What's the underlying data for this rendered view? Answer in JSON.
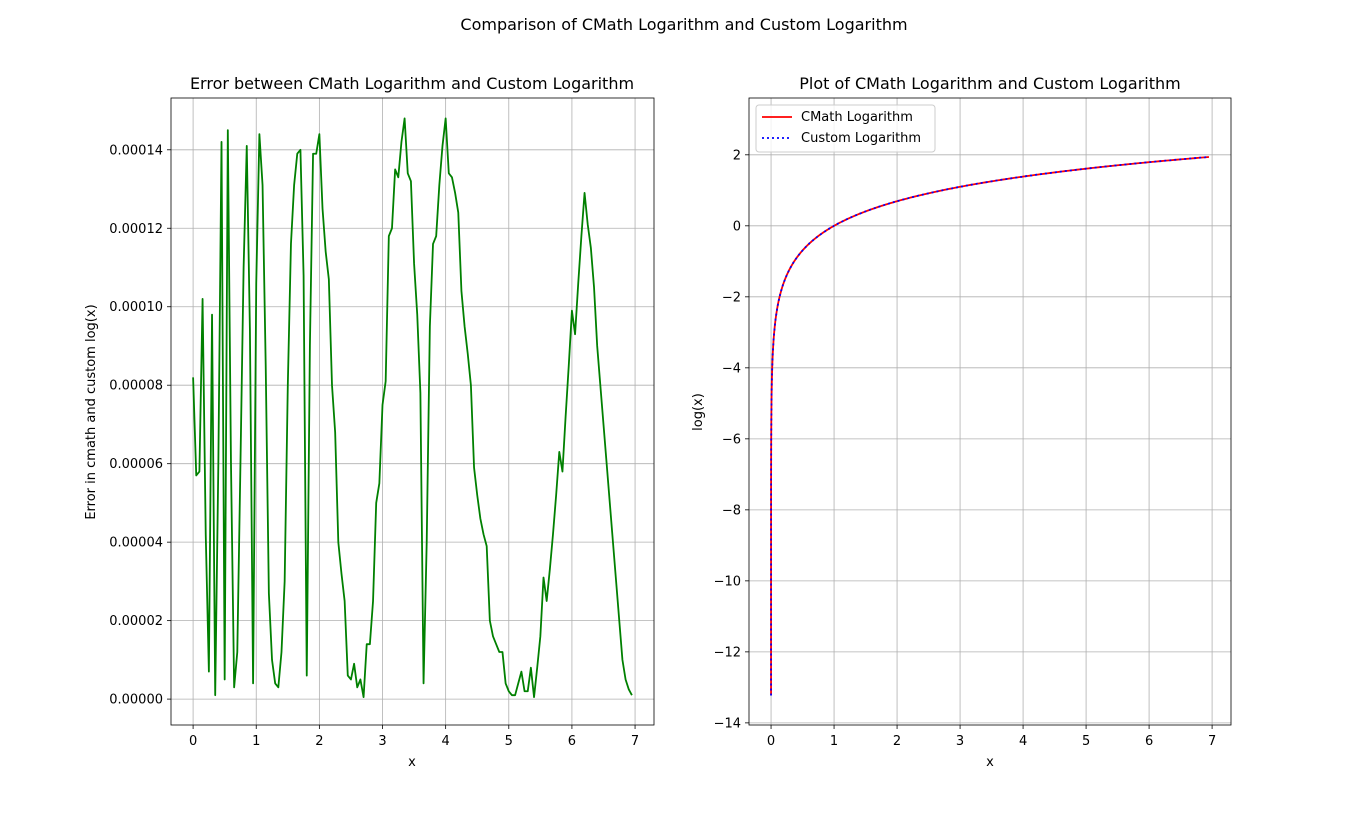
{
  "figure_title": "Comparison of CMath Logarithm and Custom Logarithm",
  "chart_data": [
    {
      "type": "line",
      "title": "Error between CMath Logarithm and Custom Logarithm",
      "xlabel": "x",
      "ylabel": "Error in cmath and custom log(x)",
      "xlim": [
        -0.35,
        7.3
      ],
      "ylim": [
        -6.6e-06,
        0.0001532
      ],
      "xticks": [
        0,
        1,
        2,
        3,
        4,
        5,
        6,
        7
      ],
      "xtick_labels": [
        "0",
        "1",
        "2",
        "3",
        "4",
        "5",
        "6",
        "7"
      ],
      "yticks": [
        0,
        2e-05,
        4e-05,
        6e-05,
        8e-05,
        0.0001,
        0.00012,
        0.00014
      ],
      "ytick_labels": [
        "0.00000",
        "0.00002",
        "0.00004",
        "0.00006",
        "0.00008",
        "0.00010",
        "0.00012",
        "0.00014"
      ],
      "grid": true,
      "series": [
        {
          "color": "#008000",
          "style": "solid",
          "x": [
            0,
            0.05,
            0.1,
            0.15,
            0.2,
            0.25,
            0.3,
            0.35,
            0.4,
            0.45,
            0.5,
            0.55,
            0.6,
            0.65,
            0.7,
            0.75,
            0.8,
            0.85,
            0.9,
            0.95,
            1.0,
            1.05,
            1.1,
            1.15,
            1.2,
            1.25,
            1.3,
            1.35,
            1.4,
            1.45,
            1.5,
            1.55,
            1.6,
            1.65,
            1.7,
            1.75,
            1.8,
            1.85,
            1.9,
            1.95,
            2.0,
            2.05,
            2.1,
            2.15,
            2.2,
            2.25,
            2.3,
            2.35,
            2.4,
            2.45,
            2.5,
            2.55,
            2.6,
            2.65,
            2.7,
            2.75,
            2.8,
            2.85,
            2.9,
            2.95,
            3.0,
            3.05,
            3.1,
            3.15,
            3.2,
            3.25,
            3.3,
            3.35,
            3.4,
            3.45,
            3.5,
            3.55,
            3.6,
            3.65,
            3.7,
            3.75,
            3.8,
            3.85,
            3.9,
            3.95,
            4.0,
            4.05,
            4.1,
            4.15,
            4.2,
            4.25,
            4.3,
            4.35,
            4.4,
            4.45,
            4.5,
            4.55,
            4.6,
            4.65,
            4.7,
            4.75,
            4.8,
            4.85,
            4.9,
            4.95,
            5.0,
            5.05,
            5.1,
            5.15,
            5.2,
            5.25,
            5.3,
            5.35,
            5.4,
            5.45,
            5.5,
            5.55,
            5.6,
            5.65,
            5.7,
            5.75,
            5.8,
            5.85,
            5.9,
            5.95,
            6.0,
            6.05,
            6.1,
            6.15,
            6.2,
            6.25,
            6.3,
            6.35,
            6.4,
            6.45,
            6.5,
            6.55,
            6.6,
            6.65,
            6.7,
            6.75,
            6.8,
            6.85,
            6.9,
            6.95
          ],
          "y": [
            8.2e-05,
            5.7e-05,
            5.8e-05,
            0.000102,
            4.2e-05,
            7e-06,
            9.8e-05,
            1e-06,
            6e-05,
            0.000142,
            5e-06,
            0.000145,
            6e-05,
            3e-06,
            1.2e-05,
            6e-05,
            0.00011,
            0.000141,
            9.4e-05,
            4e-06,
            0.000106,
            0.000144,
            0.000131,
            8.5e-05,
            2.7e-05,
            1e-05,
            4e-06,
            3e-06,
            1.2e-05,
            3e-05,
            8e-05,
            0.000116,
            0.000131,
            0.000139,
            0.00014,
            0.000108,
            6e-06,
            9e-05,
            0.000139,
            0.000139,
            0.000144,
            0.000125,
            0.000114,
            0.000107,
            8e-05,
            6.8e-05,
            4e-05,
            3.2e-05,
            2.5e-05,
            6e-06,
            5e-06,
            9e-06,
            3e-06,
            5e-06,
            5e-07,
            1.4e-05,
            1.4e-05,
            2.5e-05,
            5e-05,
            5.5e-05,
            7.5e-05,
            8.1e-05,
            0.000118,
            0.00012,
            0.000135,
            0.000133,
            0.000142,
            0.000148,
            0.000134,
            0.000132,
            0.000111,
            9.8e-05,
            7.8e-05,
            4e-06,
            4e-05,
            9.5e-05,
            0.000116,
            0.000118,
            0.000131,
            0.000141,
            0.000148,
            0.000134,
            0.000133,
            0.000129,
            0.000124,
            0.000104,
            9.5e-05,
            8.8e-05,
            8e-05,
            5.9e-05,
            5.2e-05,
            4.6e-05,
            4.2e-05,
            3.9e-05,
            2e-05,
            1.6e-05,
            1.4e-05,
            1.2e-05,
            1.2e-05,
            4e-06,
            2e-06,
            1e-06,
            1e-06,
            4e-06,
            7e-06,
            2e-06,
            2e-06,
            8e-06,
            5e-07,
            8e-06,
            1.6e-05,
            3.1e-05,
            2.5e-05,
            3.3e-05,
            4.2e-05,
            5.2e-05,
            6.3e-05,
            5.8e-05,
            7.2e-05,
            8.5e-05,
            9.9e-05,
            9.3e-05,
            0.000106,
            0.000118,
            0.000129,
            0.000121,
            0.000115,
            0.000105,
            9e-05,
            8e-05,
            7e-05,
            6e-05,
            5e-05,
            4e-05,
            3e-05,
            2e-05,
            1e-05,
            5e-06,
            2.5e-06,
            1e-06
          ]
        }
      ]
    },
    {
      "type": "line",
      "title": "Plot of CMath Logarithm and Custom Logarithm",
      "xlabel": "x",
      "ylabel": "log(x)",
      "xlim": [
        -0.35,
        7.3
      ],
      "ylim": [
        -14.06,
        3.6
      ],
      "xticks": [
        0,
        1,
        2,
        3,
        4,
        5,
        6,
        7
      ],
      "xtick_labels": [
        "0",
        "1",
        "2",
        "3",
        "4",
        "5",
        "6",
        "7"
      ],
      "yticks": [
        -14,
        -12,
        -10,
        -8,
        -6,
        -4,
        -2,
        0,
        2
      ],
      "ytick_labels": [
        "−14",
        "−12",
        "−10",
        "−8",
        "−6",
        "−4",
        "−2",
        "0",
        "2"
      ],
      "grid": true,
      "legend": "upper-left",
      "function": "ln",
      "x_domain": [
        1.8e-06,
        6.95
      ],
      "series": [
        {
          "name": "CMath Logarithm",
          "color": "#ff0000",
          "style": "solid"
        },
        {
          "name": "Custom Logarithm",
          "color": "#0000ff",
          "style": "dotted"
        }
      ]
    }
  ]
}
